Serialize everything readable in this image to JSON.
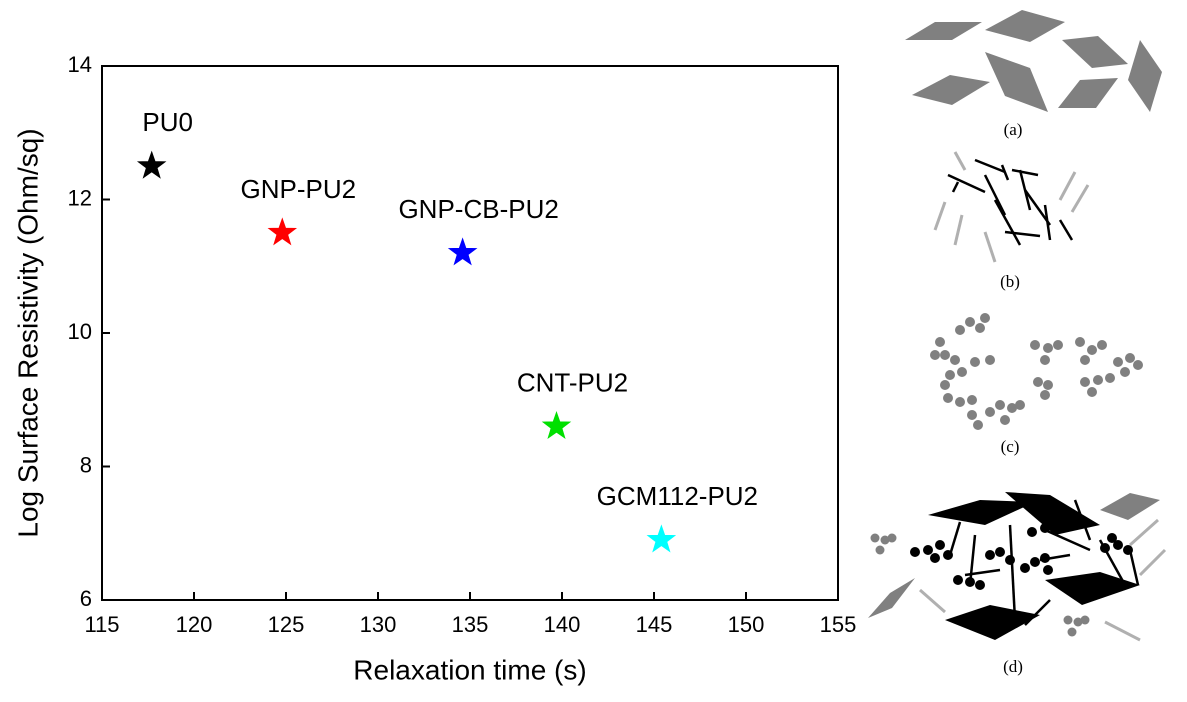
{
  "chart_data": {
    "type": "scatter",
    "x_label": "Relaxation time (s)",
    "y_label": "Log Surface Resistivity (Ohm/sq)",
    "xlim": [
      115,
      155
    ],
    "xticks": [
      115,
      120,
      125,
      130,
      135,
      140,
      145,
      150,
      155
    ],
    "ylim": [
      6,
      14
    ],
    "yticks": [
      6,
      8,
      10,
      12,
      14
    ],
    "marker": "star",
    "series": [
      {
        "name": "PU0",
        "color": "#000000",
        "x": [
          117.7
        ],
        "values": [
          12.5
        ]
      },
      {
        "name": "GNP-PU2",
        "color": "#ff0000",
        "x": [
          124.8
        ],
        "values": [
          11.5
        ]
      },
      {
        "name": "GNP-CB-PU2",
        "color": "#0000ff",
        "x": [
          134.6
        ],
        "values": [
          11.2
        ]
      },
      {
        "name": "CNT-PU2",
        "color": "#00e000",
        "x": [
          139.7
        ],
        "values": [
          8.6
        ]
      },
      {
        "name": "GCM112-PU2",
        "color": "#00ffff",
        "x": [
          145.4
        ],
        "values": [
          6.9
        ]
      }
    ]
  },
  "illustration_labels": [
    "(a)",
    "(b)",
    "(c)",
    "(d)"
  ]
}
